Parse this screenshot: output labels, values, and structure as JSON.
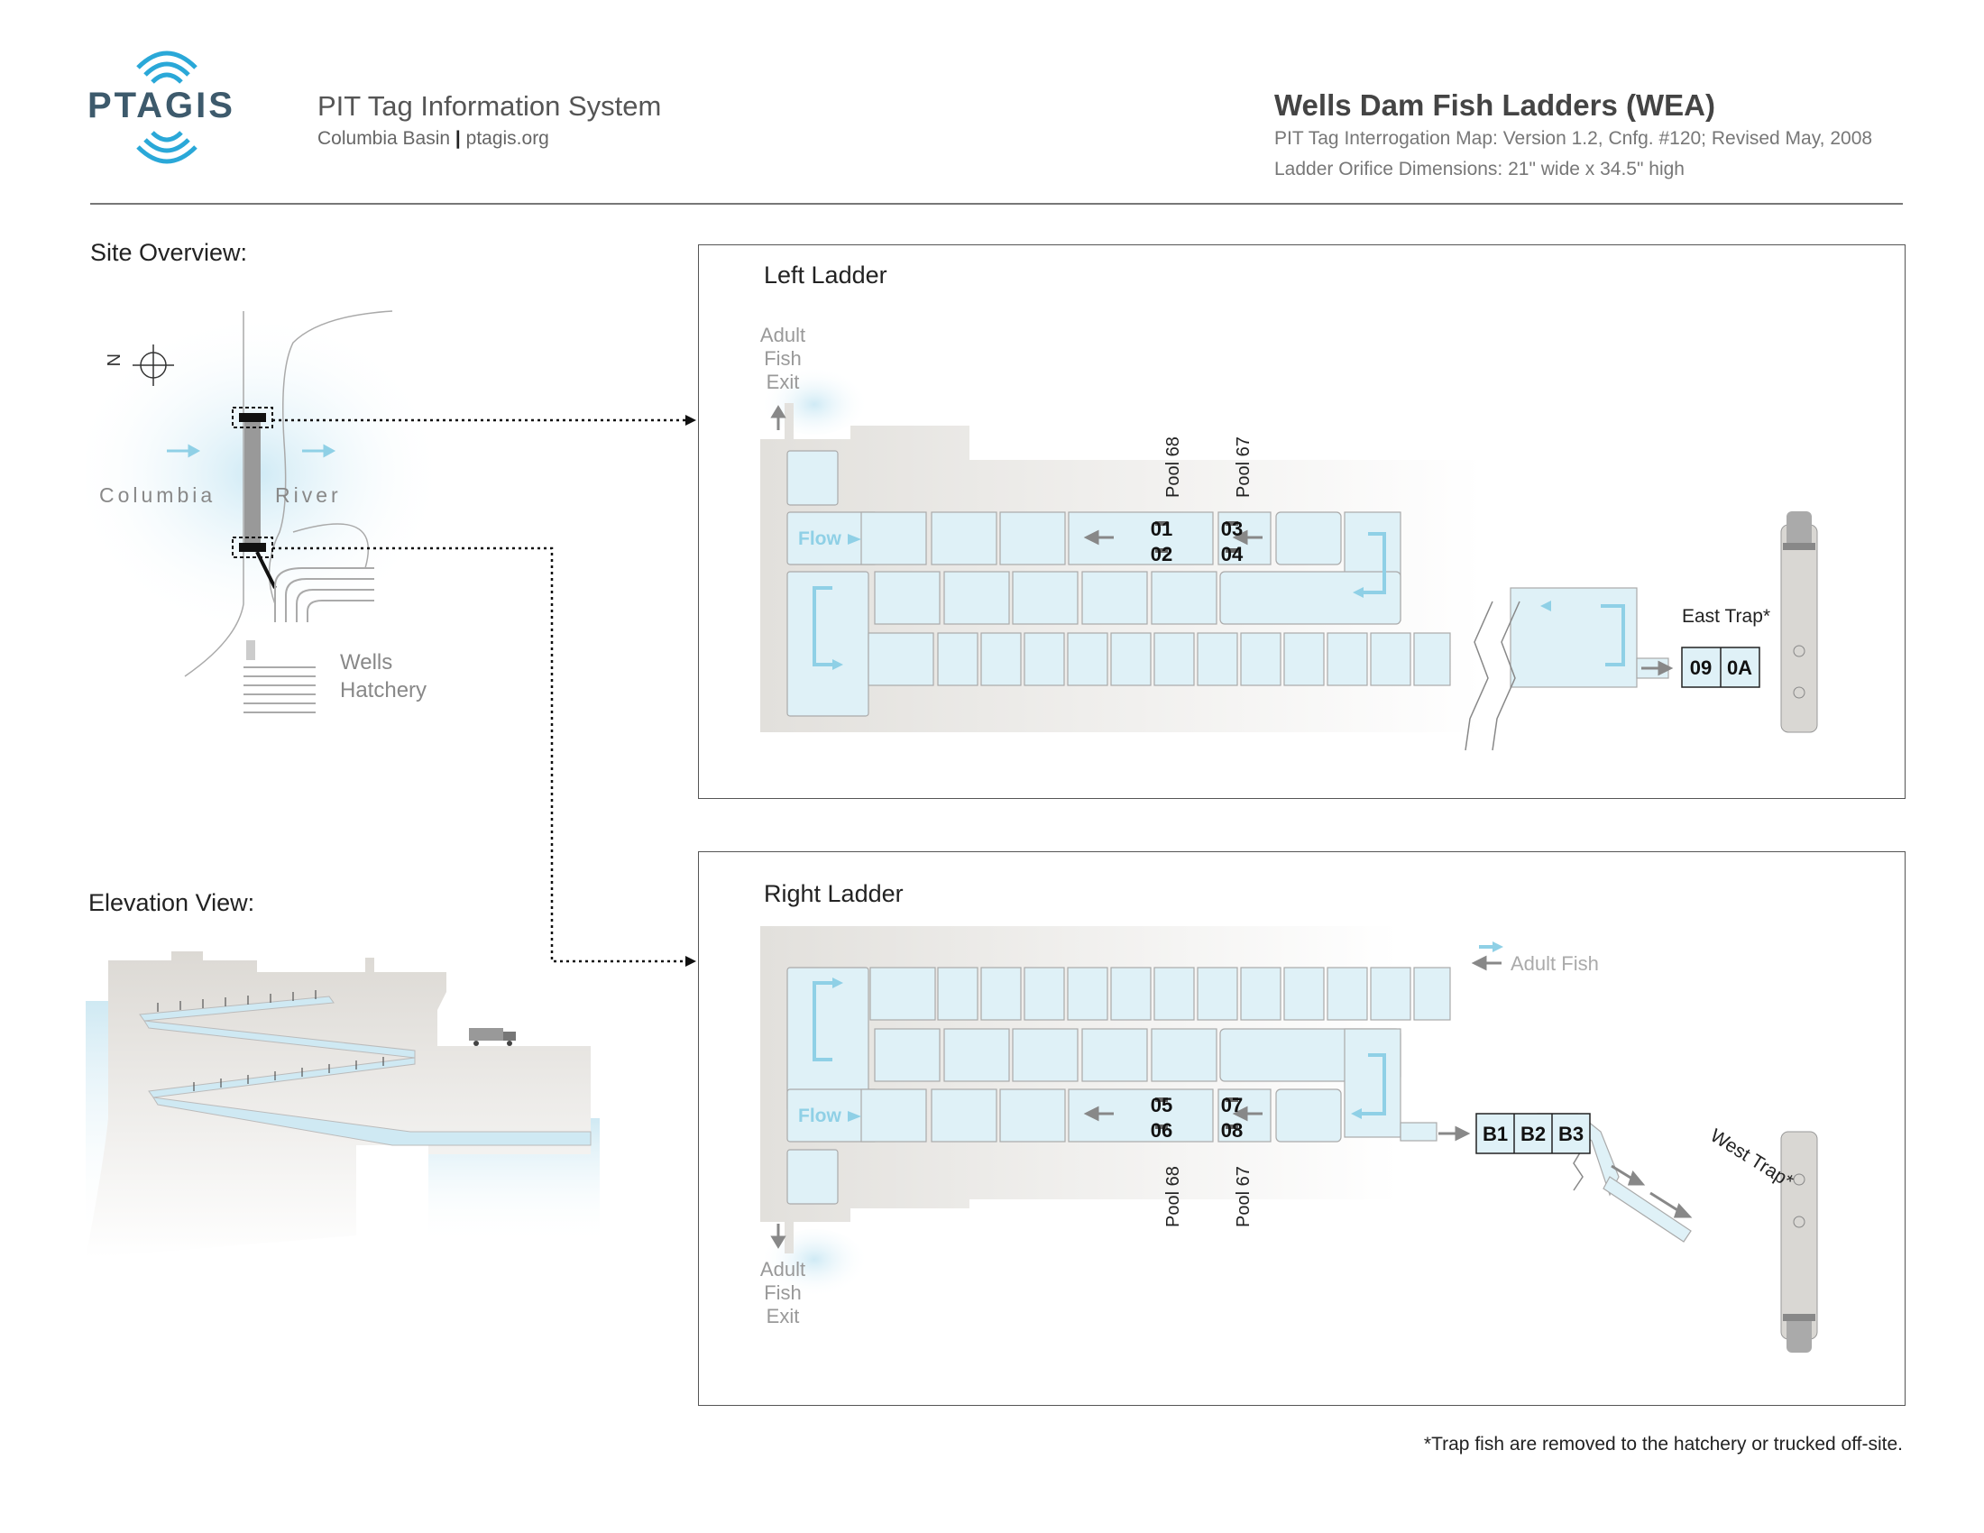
{
  "header": {
    "logo_text": "PTAGIS",
    "system_name": "PIT Tag Information System",
    "basin": "Columbia Basin",
    "website": "ptagis.org",
    "map_title": "Wells Dam Fish Ladders (WEA)",
    "map_version": "PIT Tag Interrogation Map: Version 1.2, Cnfg. #120; Revised May, 2008",
    "orifice_dims": "Ladder Orifice Dimensions: 21\" wide x 34.5\" high"
  },
  "site_overview": {
    "label": "Site Overview:",
    "compass": "N",
    "river_left": "Columbia",
    "river_right": "River",
    "hatchery_1": "Wells",
    "hatchery_2": "Hatchery"
  },
  "elevation": {
    "label": "Elevation View:"
  },
  "left_ladder": {
    "title": "Left Ladder",
    "exit_1": "Adult",
    "exit_2": "Fish",
    "exit_3": "Exit",
    "flow": "Flow",
    "pool_a": "Pool 68",
    "pool_b": "Pool 67",
    "ant_01": "01",
    "ant_02": "02",
    "ant_03": "03",
    "ant_04": "04",
    "trap_label": "East Trap*",
    "trap_09": "09",
    "trap_0A": "0A"
  },
  "right_ladder": {
    "title": "Right Ladder",
    "adult_fish": "Adult Fish",
    "flow": "Flow",
    "pool_a": "Pool 68",
    "pool_b": "Pool 67",
    "ant_05": "05",
    "ant_06": "06",
    "ant_07": "07",
    "ant_08": "08",
    "ant_B1": "B1",
    "ant_B2": "B2",
    "ant_B3": "B3",
    "trap_label": "West Trap*",
    "exit_1": "Adult",
    "exit_2": "Fish",
    "exit_3": "Exit"
  },
  "footnote": "*Trap fish are removed to the hatchery or trucked off-site.",
  "colors": {
    "water": "#dff1f7",
    "flow_arrow": "#8fd0e6",
    "concrete": "#e6e4e0",
    "logo": "#3d5a6c",
    "logo_waves": "#2aa8d8"
  }
}
